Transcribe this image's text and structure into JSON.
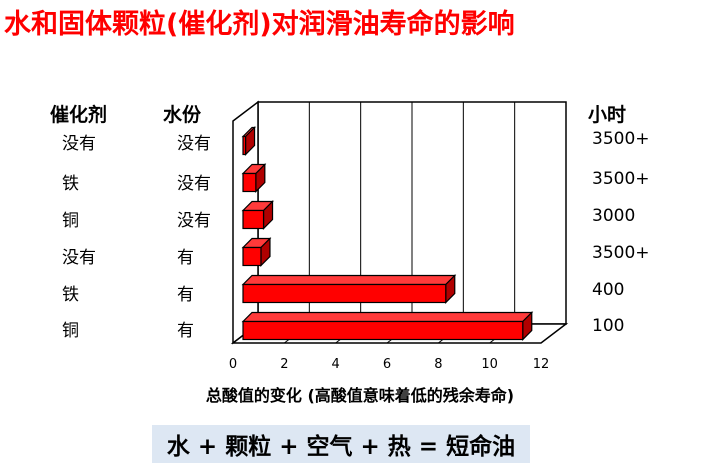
{
  "title": "水和固体颗粒(催化剂)对润滑油寿命的影响",
  "formula": "水 + 颗粒 + 空气 + 热 =  短命油",
  "chart_data": {
    "type": "bar",
    "orientation": "horizontal",
    "style": "3d",
    "headers": {
      "catalyst": "催化剂",
      "water": "水份",
      "hours": "小时"
    },
    "rows": [
      {
        "catalyst": "没有",
        "water": "没有",
        "hours": "3500+",
        "value": 0.1
      },
      {
        "catalyst": "铁",
        "water": "没有",
        "hours": "3500+",
        "value": 0.5
      },
      {
        "catalyst": "铜",
        "water": "没有",
        "hours": "3000",
        "value": 0.8
      },
      {
        "catalyst": "没有",
        "water": "有",
        "hours": "3500+",
        "value": 0.7
      },
      {
        "catalyst": "铁",
        "water": "有",
        "hours": "400",
        "value": 7.9
      },
      {
        "catalyst": "铜",
        "water": "有",
        "hours": "100",
        "value": 10.9
      }
    ],
    "xlabel": "总酸值的变化 (高酸值意味着低的残余寿命)",
    "xlim": [
      0,
      12
    ],
    "xticks": [
      0,
      2,
      4,
      6,
      8,
      10,
      12
    ],
    "grid": true,
    "bar_color": "#ff0000"
  }
}
